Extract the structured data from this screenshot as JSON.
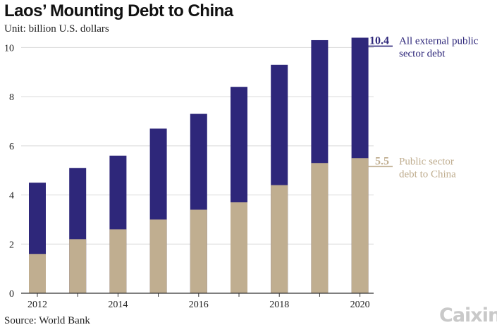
{
  "title": "Laos’ Mounting Debt to China",
  "unit_label": "Unit: billion U.S. dollars",
  "source": "Source: World Bank",
  "logo_text": "Caixin",
  "colors": {
    "total": "#2e277a",
    "china": "#c0ae90",
    "grid": "#d9d9d9",
    "axis": "#333333"
  },
  "chart_data": {
    "type": "bar",
    "stacked": "overlay",
    "categories": [
      "2012",
      "2013",
      "2014",
      "2015",
      "2016",
      "2017",
      "2018",
      "2019",
      "2020"
    ],
    "x_tick_labels": [
      "2012",
      "",
      "2014",
      "",
      "2016",
      "",
      "2018",
      "",
      "2020"
    ],
    "series": [
      {
        "name": "All external public sector debt",
        "color": "#2e277a",
        "values": [
          4.5,
          5.1,
          5.6,
          6.7,
          7.3,
          8.4,
          9.3,
          10.3,
          10.4
        ]
      },
      {
        "name": "Public sector debt to China",
        "color": "#c0ae90",
        "values": [
          1.6,
          2.2,
          2.6,
          3.0,
          3.4,
          3.7,
          4.4,
          5.3,
          5.5
        ]
      }
    ],
    "annotations": [
      {
        "value_label": "10.4",
        "lines": [
          "All external public",
          "sector debt"
        ],
        "series": 0
      },
      {
        "value_label": "5.5",
        "lines": [
          "Public sector",
          "debt to China"
        ],
        "series": 1
      }
    ],
    "ylim": [
      0,
      10.5
    ],
    "yticks": [
      0,
      2,
      4,
      6,
      8,
      10
    ],
    "grid": "horizontal",
    "legend": "direct labels at right"
  }
}
